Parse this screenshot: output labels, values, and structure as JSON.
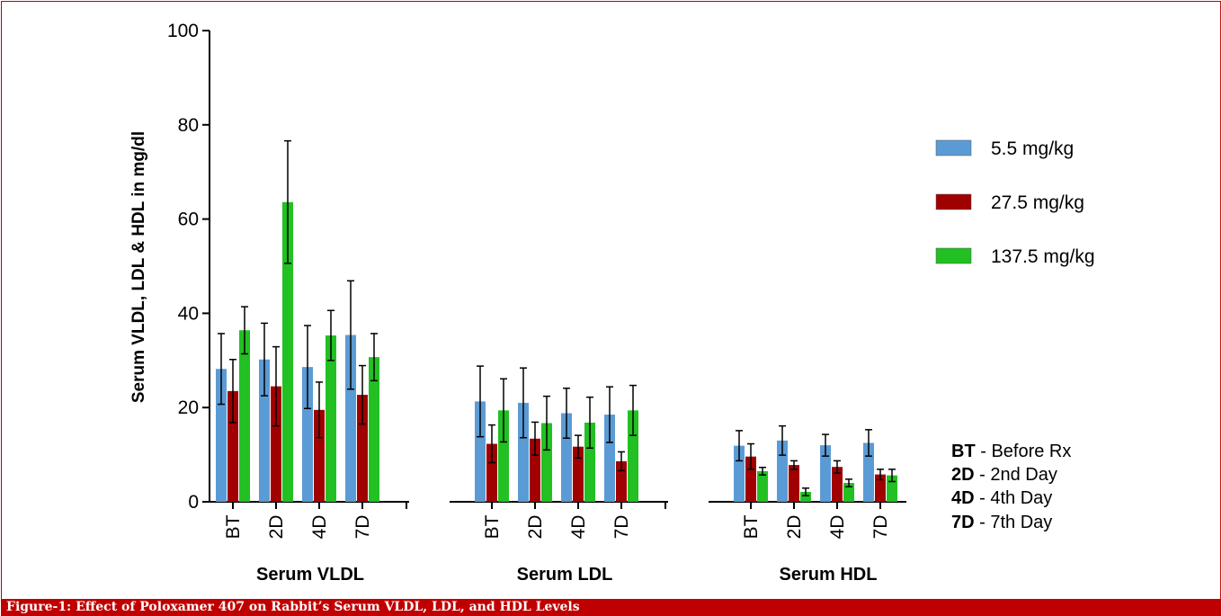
{
  "figure_caption": "Figure-1: Effect of Poloxamer 407 on Rabbit’s Serum VLDL, LDL, and HDL Levels",
  "colors": {
    "frame": "#c00000",
    "caption_bg": "#c00000",
    "series_5_5": "#5b9bd5",
    "series_27_5": "#a00000",
    "series_137_5": "#22c022"
  },
  "chart_data": {
    "type": "bar",
    "ylabel": "Serum VLDL, LDL & HDL in mg/dl",
    "xlabel": "",
    "ylim": [
      0,
      100
    ],
    "yticks": [
      0,
      20,
      40,
      60,
      80,
      100
    ],
    "grid": false,
    "legend_position": "right",
    "groups": [
      "Serum VLDL",
      "Serum LDL",
      "Serum HDL"
    ],
    "categories": [
      "BT",
      "2D",
      "4D",
      "7D"
    ],
    "series": [
      {
        "name": "5.5 mg/kg",
        "values": [
          [
            28.2,
            30.2,
            28.6,
            35.4
          ],
          [
            21.3,
            21.0,
            18.8,
            18.5
          ],
          [
            11.9,
            13.0,
            12.0,
            12.5
          ]
        ],
        "errors": [
          [
            7.5,
            7.7,
            8.8,
            11.5
          ],
          [
            7.5,
            7.4,
            5.3,
            5.9
          ],
          [
            3.2,
            3.1,
            2.3,
            2.8
          ]
        ]
      },
      {
        "name": "27.5 mg/kg",
        "values": [
          [
            23.5,
            24.5,
            19.5,
            22.7
          ],
          [
            12.3,
            13.4,
            11.7,
            8.6
          ],
          [
            9.6,
            7.8,
            7.4,
            5.8
          ]
        ],
        "errors": [
          [
            6.7,
            8.4,
            5.9,
            6.2
          ],
          [
            4.0,
            3.5,
            2.4,
            2.0
          ],
          [
            2.7,
            0.9,
            1.3,
            1.1
          ]
        ]
      },
      {
        "name": "137.5 mg/kg",
        "values": [
          [
            36.4,
            63.6,
            35.3,
            30.7
          ],
          [
            19.4,
            16.7,
            16.8,
            19.4
          ],
          [
            6.5,
            2.1,
            4.0,
            5.6
          ]
        ],
        "errors": [
          [
            5.0,
            13.0,
            5.3,
            5.0
          ],
          [
            6.7,
            5.7,
            5.4,
            5.3
          ],
          [
            0.8,
            0.8,
            0.8,
            1.3
          ]
        ]
      }
    ],
    "abbreviations": [
      {
        "key": "BT",
        "text": " - Before Rx"
      },
      {
        "key": "2D",
        "text": " - 2nd Day"
      },
      {
        "key": "4D",
        "text": " - 4th Day"
      },
      {
        "key": "7D",
        "text": " - 7th Day"
      }
    ]
  }
}
